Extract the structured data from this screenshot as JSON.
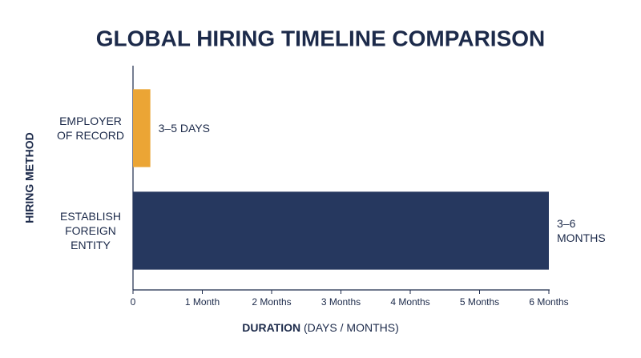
{
  "chart_data": {
    "type": "hbar",
    "title": "GLOBAL HIRING TIMELINE COMPARISON",
    "categories": [
      "EMPLOYER OF RECORD",
      "ESTABLISH FOREIGN ENTITY"
    ],
    "values": [
      0.25,
      6
    ],
    "value_labels": [
      "3–5 DAYS",
      "3–6 MONTHS"
    ],
    "colors": [
      "#eba535",
      "#26385f"
    ],
    "xlim": [
      0,
      6
    ],
    "xticks": [
      0,
      {
        "value": 1,
        "label": "1 Month"
      },
      {
        "value": 2,
        "label": "2 Months"
      },
      {
        "value": 3,
        "label": "3 Months"
      },
      {
        "value": 4,
        "label": "4 Months"
      },
      {
        "value": 5,
        "label": "5 Months"
      },
      {
        "value": 6,
        "label": "6 Months"
      }
    ],
    "xlabel": [
      "DURATION",
      "(DAYS / MONTHS)"
    ],
    "ylabel": "HIRING METHOD"
  }
}
